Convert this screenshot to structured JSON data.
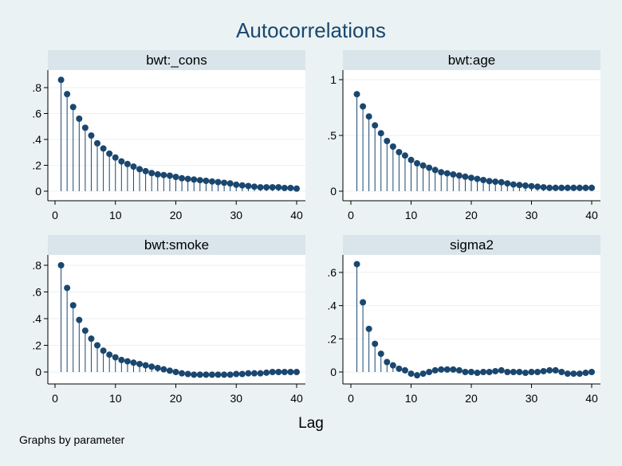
{
  "title": "Autocorrelations",
  "xlabel": "Lag",
  "note": "Graphs by parameter",
  "colors": {
    "background": "#eaf2f3",
    "plot_bg": "#ffffff",
    "header_bg": "#d9e5ea",
    "marker": "#1a476f",
    "stem": "#1a476f",
    "grid": "#eaf2f3"
  },
  "chart_data": [
    {
      "type": "scatter",
      "subtitle": "bwt:_cons",
      "x": [
        1,
        2,
        3,
        4,
        5,
        6,
        7,
        8,
        9,
        10,
        11,
        12,
        13,
        14,
        15,
        16,
        17,
        18,
        19,
        20,
        21,
        22,
        23,
        24,
        25,
        26,
        27,
        28,
        29,
        30,
        31,
        32,
        33,
        34,
        35,
        36,
        37,
        38,
        39,
        40
      ],
      "y": [
        0.86,
        0.75,
        0.65,
        0.56,
        0.49,
        0.43,
        0.37,
        0.33,
        0.29,
        0.26,
        0.23,
        0.21,
        0.19,
        0.17,
        0.155,
        0.14,
        0.13,
        0.125,
        0.12,
        0.11,
        0.1,
        0.095,
        0.09,
        0.085,
        0.08,
        0.075,
        0.07,
        0.065,
        0.06,
        0.05,
        0.045,
        0.04,
        0.035,
        0.03,
        0.03,
        0.03,
        0.03,
        0.025,
        0.025,
        0.02
      ],
      "xlim": [
        0,
        40
      ],
      "ylim": [
        0,
        0.88
      ],
      "xticks": [
        "0",
        "10",
        "20",
        "30",
        "40"
      ],
      "yticks": [
        "0",
        ".2",
        ".4",
        ".6",
        ".8"
      ]
    },
    {
      "type": "scatter",
      "subtitle": "bwt:age",
      "x": [
        1,
        2,
        3,
        4,
        5,
        6,
        7,
        8,
        9,
        10,
        11,
        12,
        13,
        14,
        15,
        16,
        17,
        18,
        19,
        20,
        21,
        22,
        23,
        24,
        25,
        26,
        27,
        28,
        29,
        30,
        31,
        32,
        33,
        34,
        35,
        36,
        37,
        38,
        39,
        40
      ],
      "y": [
        0.87,
        0.76,
        0.67,
        0.59,
        0.52,
        0.45,
        0.4,
        0.35,
        0.32,
        0.28,
        0.25,
        0.23,
        0.21,
        0.19,
        0.17,
        0.16,
        0.15,
        0.14,
        0.13,
        0.12,
        0.11,
        0.1,
        0.09,
        0.085,
        0.08,
        0.07,
        0.06,
        0.055,
        0.05,
        0.045,
        0.04,
        0.035,
        0.03,
        0.03,
        0.03,
        0.03,
        0.03,
        0.03,
        0.03,
        0.03
      ],
      "xlim": [
        0,
        40
      ],
      "ylim": [
        0,
        1.0
      ],
      "xticks": [
        "0",
        "10",
        "20",
        "30",
        "40"
      ],
      "yticks": [
        "0",
        ".5",
        "1"
      ]
    },
    {
      "type": "scatter",
      "subtitle": "bwt:smoke",
      "x": [
        1,
        2,
        3,
        4,
        5,
        6,
        7,
        8,
        9,
        10,
        11,
        12,
        13,
        14,
        15,
        16,
        17,
        18,
        19,
        20,
        21,
        22,
        23,
        24,
        25,
        26,
        27,
        28,
        29,
        30,
        31,
        32,
        33,
        34,
        35,
        36,
        37,
        38,
        39,
        40
      ],
      "y": [
        0.8,
        0.63,
        0.5,
        0.39,
        0.31,
        0.25,
        0.2,
        0.16,
        0.13,
        0.11,
        0.09,
        0.08,
        0.07,
        0.06,
        0.05,
        0.04,
        0.03,
        0.02,
        0.01,
        0.0,
        -0.01,
        -0.015,
        -0.02,
        -0.02,
        -0.02,
        -0.02,
        -0.02,
        -0.02,
        -0.02,
        -0.015,
        -0.015,
        -0.01,
        -0.01,
        -0.01,
        -0.005,
        0.0,
        0.0,
        0.0,
        0.0,
        0.0
      ],
      "xlim": [
        0,
        40
      ],
      "ylim": [
        -0.05,
        0.82
      ],
      "xticks": [
        "0",
        "10",
        "20",
        "30",
        "40"
      ],
      "yticks": [
        "0",
        ".2",
        ".4",
        ".6",
        ".8"
      ]
    },
    {
      "type": "scatter",
      "subtitle": "sigma2",
      "x": [
        1,
        2,
        3,
        4,
        5,
        6,
        7,
        8,
        9,
        10,
        11,
        12,
        13,
        14,
        15,
        16,
        17,
        18,
        19,
        20,
        21,
        22,
        23,
        24,
        25,
        26,
        27,
        28,
        29,
        30,
        31,
        32,
        33,
        34,
        35,
        36,
        37,
        38,
        39,
        40
      ],
      "y": [
        0.65,
        0.42,
        0.26,
        0.17,
        0.11,
        0.06,
        0.04,
        0.02,
        0.01,
        -0.01,
        -0.02,
        -0.01,
        0.0,
        0.01,
        0.015,
        0.015,
        0.015,
        0.01,
        0.0,
        0.0,
        -0.005,
        0.0,
        0.0,
        0.005,
        0.01,
        0.0,
        0.0,
        0.0,
        -0.005,
        0.0,
        0.0,
        0.005,
        0.01,
        0.01,
        0.0,
        -0.01,
        -0.01,
        -0.01,
        -0.005,
        0.0
      ],
      "xlim": [
        0,
        40
      ],
      "ylim": [
        -0.05,
        0.68
      ],
      "xticks": [
        "0",
        "10",
        "20",
        "30",
        "40"
      ],
      "yticks": [
        "0",
        ".2",
        ".4",
        ".6"
      ]
    }
  ]
}
